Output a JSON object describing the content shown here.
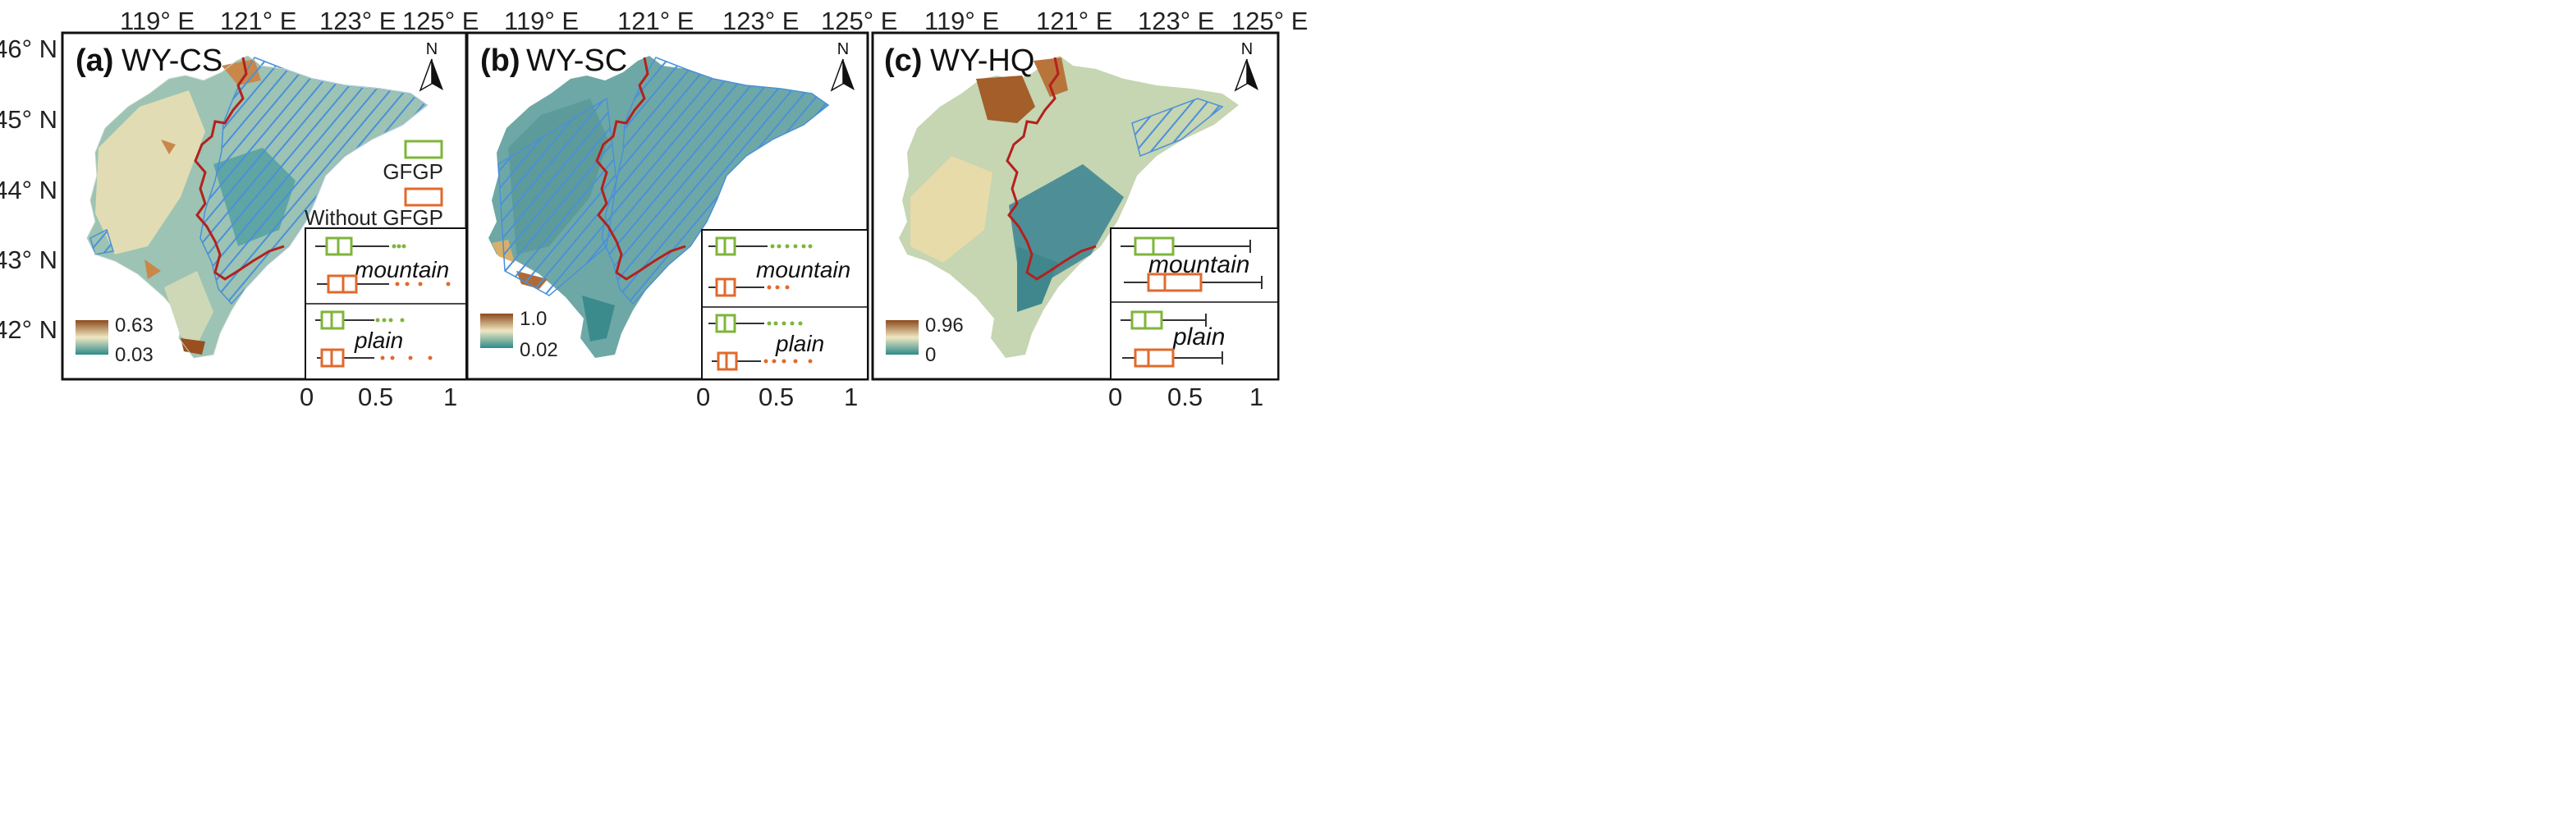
{
  "shared": {
    "lon_labels": [
      "119° E",
      "121° E",
      "123° E",
      "125° E"
    ],
    "lat_labels": [
      "46° N",
      "45° N",
      "44° N",
      "43° N",
      "42° N"
    ],
    "north_label": "N",
    "legend_gfgp": "GFGP",
    "legend_without": "Without GFGP",
    "group_mountain": "mountain",
    "group_plain": "plain",
    "colors": {
      "ramp_high": "#8c4a1c",
      "ramp_mid": "#efe8c2",
      "ramp_low": "#2d8a8a",
      "gfgp": "#7fb53a",
      "without_gfgp": "#e06a2c",
      "boundary": "#b3211d",
      "hatch": "#4a90d9"
    }
  },
  "panels": [
    {
      "tag": "(a)",
      "title": "WY-CS",
      "legend_max": "0.63",
      "legend_min": "0.03",
      "x_ticks": [
        "0",
        "0.5",
        "1"
      ]
    },
    {
      "tag": "(b)",
      "title": "WY-SC",
      "legend_max": "1.0",
      "legend_min": "0.02",
      "x_ticks": [
        "0",
        "0.5",
        "1"
      ]
    },
    {
      "tag": "(c)",
      "title": "WY-HQ",
      "legend_max": "0.96",
      "legend_min": "0",
      "x_ticks": [
        "0",
        "0.5",
        "1"
      ]
    }
  ]
}
